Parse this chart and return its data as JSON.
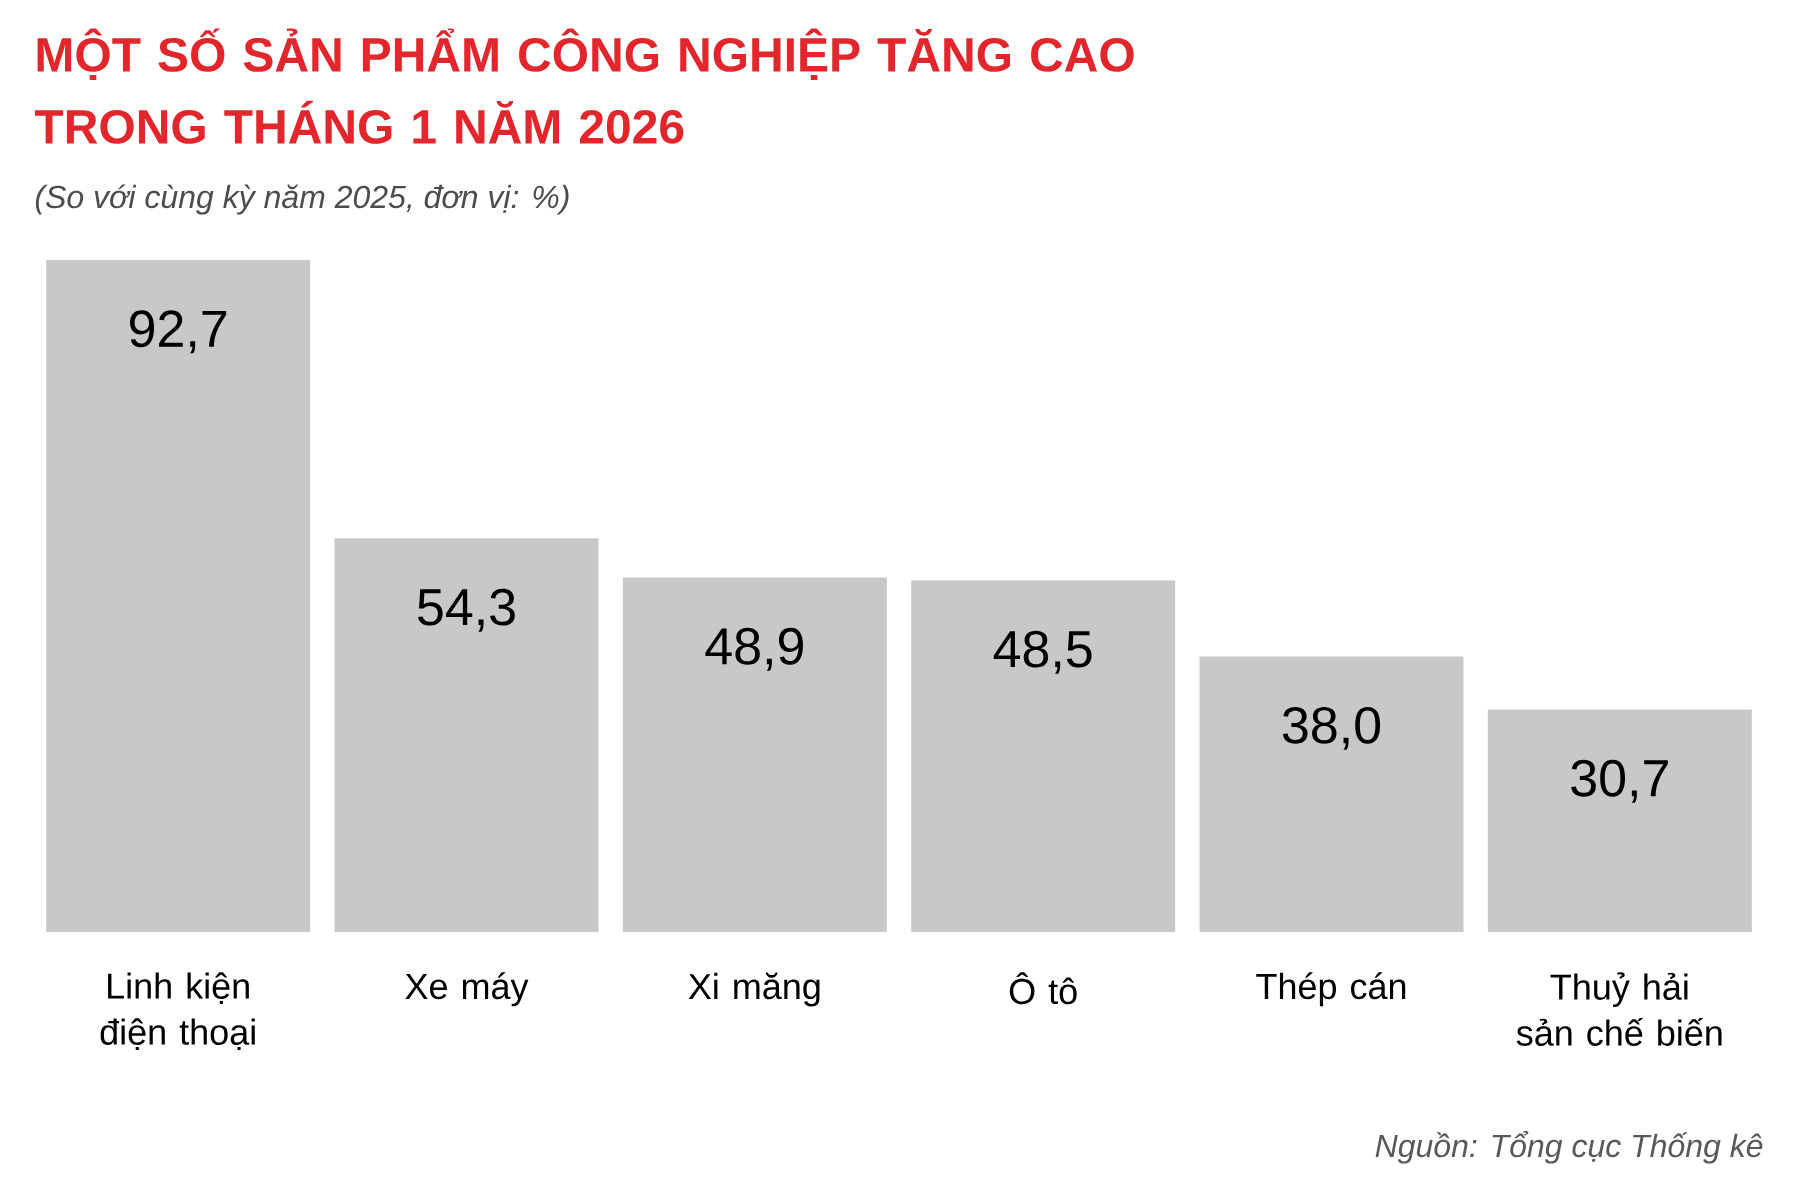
{
  "chart_data": {
    "type": "bar",
    "title": "MỘT SỐ SẢN PHẨM CÔNG NGHIỆP TĂNG CAO TRONG THÁNG 1 NĂM 2026",
    "subtitle": "(So với cùng kỳ năm 2025, đơn vị: %)",
    "categories": [
      "Linh kiện điện thoại",
      "Xe máy",
      "Xi măng",
      "Ô tô",
      "Thép cán",
      "Thuỷ hải sản chế biến"
    ],
    "values": [
      92.7,
      54.3,
      48.9,
      48.5,
      38.0,
      30.7
    ],
    "color": "#c9c8c9",
    "value_labels": [
      "92,7",
      "54,3",
      "48,9",
      "48,5",
      "38,0",
      "30,7"
    ],
    "annotations": [
      "Nguồn: Tổng cục Thống kê"
    ]
  }
}
